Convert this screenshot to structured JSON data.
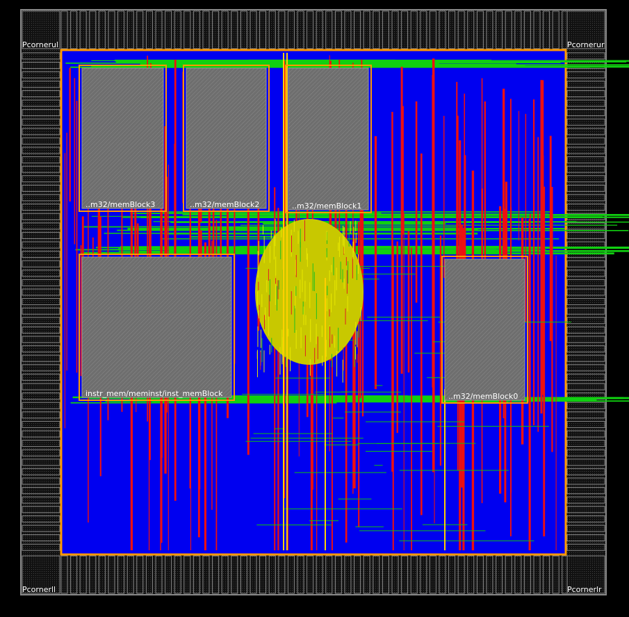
{
  "corners": [
    {
      "label": "Pcornerul"
    },
    {
      "label": "Pcornerur"
    },
    {
      "label": "Pcornerll"
    },
    {
      "label": "Pcornerlr"
    }
  ],
  "macros": [
    {
      "label": "..m32/memBlock3"
    },
    {
      "label": "..m32/memBlock2"
    },
    {
      "label": "..m32/memBlock1"
    },
    {
      "label": "instr_mem/meminst/inst_memBlock"
    },
    {
      "label": "..m32/memBlock0"
    }
  ]
}
